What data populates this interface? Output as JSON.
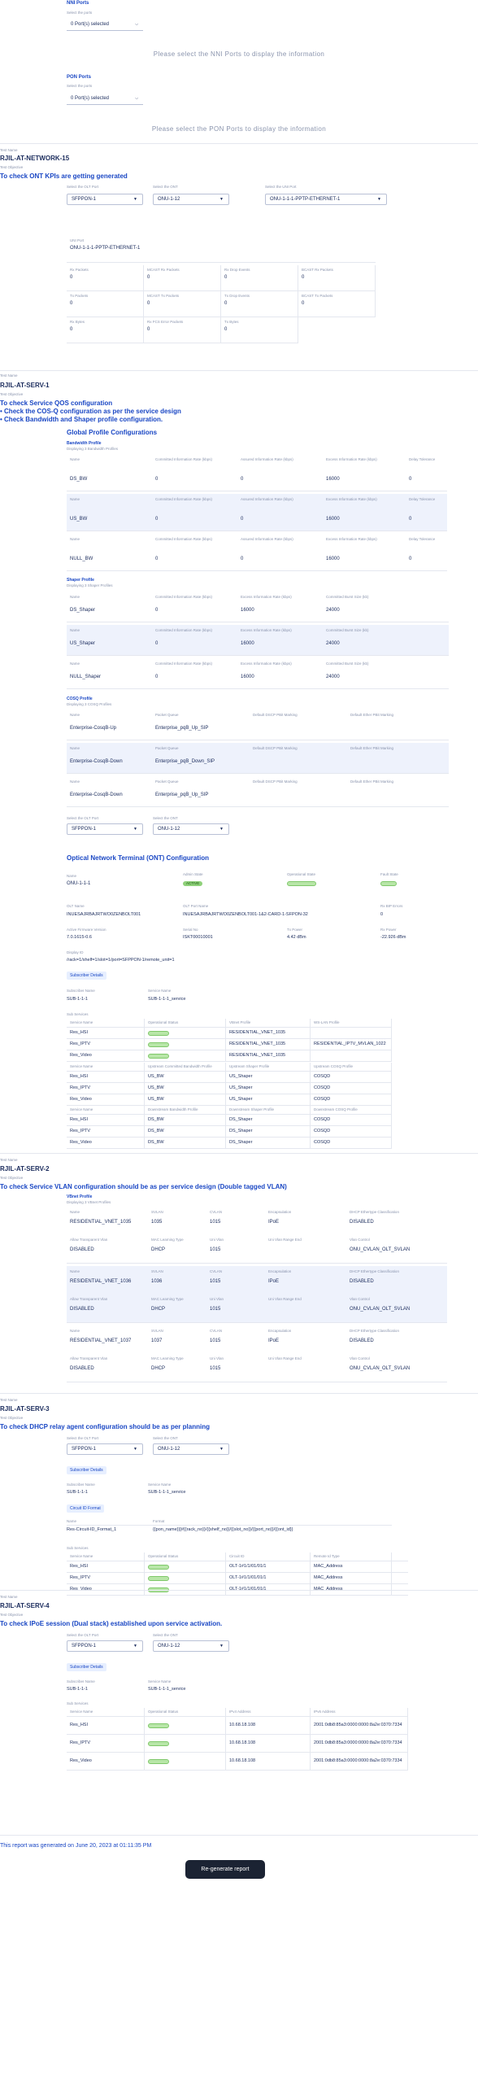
{
  "nni": {
    "title": "NNI Ports",
    "subtitle": "Select the ports",
    "selected": "0 Port(s) selected",
    "message": "Please select the NNI Ports to display the information"
  },
  "pon": {
    "title": "PON Ports",
    "subtitle": "Select the ports",
    "selected": "0 Port(s) selected",
    "message": "Please select the PON Ports to display the information"
  },
  "labels": {
    "test_name": "Test Name",
    "test_objective": "Test Objective",
    "select_olt_port": "Select the OLT Port",
    "select_onu": "Select the ONT",
    "select_uni": "Select the UNI Port",
    "subscriber_details": "Subscriber Details",
    "subscriber_name": "Subscriber Name",
    "service_name": "Service Name",
    "sub_services": "Sub Services",
    "circuit_id_format": "Circuit ID Format",
    "name": "Name",
    "format": "Format"
  },
  "net15": {
    "test_name": "RJIL-AT-NETWORK-15",
    "objective": "To check ONT KPIs are getting generated",
    "olt_port": "SFPPON-1",
    "onu": "ONU-1-12",
    "uni": "ONU-1-1-1-PPTP-ETHERNET-1",
    "uni_label": "UNI Port",
    "uni_value": "ONU-1-1-1-PPTP-ETHERNET-1",
    "kpis": [
      {
        "l": "Rx Packets",
        "v": "0"
      },
      {
        "l": "MCAST Rx Packets",
        "v": "0"
      },
      {
        "l": "Rx Drop Events",
        "v": "0"
      },
      {
        "l": "BCAST Rx Packets",
        "v": "0"
      },
      {
        "l": "Tx Packets",
        "v": "0"
      },
      {
        "l": "MCAST Tx Packets",
        "v": "0"
      },
      {
        "l": "Tx Drop Events",
        "v": "0"
      },
      {
        "l": "BCAST Tx Packets",
        "v": "0"
      },
      {
        "l": "Rx Bytes",
        "v": "0"
      },
      {
        "l": "Rx FCS Error Packets",
        "v": "0"
      },
      {
        "l": "Tx Bytes",
        "v": "0"
      }
    ]
  },
  "serv1": {
    "test_name": "RJIL-AT-SERV-1",
    "objectives": [
      "To check Service QOS configuration",
      "Check the COS-Q configuration as per the service design",
      "Check Bandwidth and Shaper profile configuration."
    ],
    "gpc": "Global Profile Configurations",
    "bw_title": "Bandwidth Profile",
    "bw_sub": "Displaying 3 Bandwidth Profiles",
    "bw_headers": [
      "Name",
      "Committed Information Rate (kbps)",
      "Assured Information Rate (kbps)",
      "Excess Information Rate (kbps)",
      "Delay Tolerance"
    ],
    "bw_rows": [
      [
        "DS_BW",
        "0",
        "0",
        "16000",
        "0"
      ],
      [
        "US_BW",
        "0",
        "0",
        "16000",
        "0"
      ],
      [
        "NULL_BW",
        "0",
        "0",
        "16000",
        "0"
      ]
    ],
    "sh_title": "Shaper Profile",
    "sh_sub": "Displaying 3 Shaper Profiles",
    "sh_headers": [
      "Name",
      "Committed Information Rate (kbps)",
      "Excess Information Rate (kbps)",
      "Committed Burst Size (kb)"
    ],
    "sh_rows": [
      [
        "DS_Shaper",
        "0",
        "16000",
        "24000"
      ],
      [
        "US_Shaper",
        "0",
        "16000",
        "24000"
      ],
      [
        "NULL_Shaper",
        "0",
        "16000",
        "24000"
      ]
    ],
    "cq_title": "COSQ Profile",
    "cq_sub": "Displaying 3 COSQ Profiles",
    "cq_headers": [
      "Name",
      "Packet Queue",
      "Default DSCP PBit Marking",
      "Default Ether PBit Marking"
    ],
    "cq_rows": [
      [
        "Enterprise-CosqB-Up",
        "Enterprise_pqB_Up_SIP",
        "",
        ""
      ],
      [
        "Enterprise-CosqB-Down",
        "Enterprise_pqB_Down_SIP",
        "",
        ""
      ],
      [
        "Enterprise-CosqB-Down",
        "Enterprise_pqB_Up_SIP",
        "",
        ""
      ]
    ],
    "olt_port": "SFPPON-1",
    "onu": "ONU-1-12",
    "ont_title": "Optical Network Terminal (ONT) Configuration",
    "ont_name": "ONU-1-1-1",
    "admin_state_label": "Admin State",
    "admin_state": "ACTIVE",
    "op_state_label": "Operational State",
    "fault_state_label": "Fault State",
    "olt_name_label": "OLT Name",
    "olt_name": "INUESAJRBAJRTWO0ZENBOLT001",
    "olt_port_name_label": "OLT Port Name",
    "olt_port_name": "INUESAJRBAJRTWO0ZENBOLT001-1&2-CARD-1-SFPON-32",
    "pon_errors_label": "Rx BIP Errors",
    "pon_errors": "0",
    "active_fw_label": "Active Firmware Version",
    "active_fw": "7.0.1615-0.6",
    "serial_label": "Serial No",
    "serial": "ISKT00010001",
    "tx_power_label": "Tx Power",
    "tx_power": "4.42 dBm",
    "rx_power_label": "Rx Power",
    "rx_power": "-22.926 dBm",
    "display_id_label": "Display ID",
    "display_id": "/rack=1/shelf=1/slot=1/port=SFPPON-1/remote_unit=1",
    "subscriber": "SUB-1-1-1",
    "service": "SUB-1-1-1_service",
    "ss_headers": [
      "Service Name",
      "Operational Status",
      "VBnet Profile",
      "WS-LAN Profile"
    ],
    "ss_rows": [
      [
        "Res_HSI",
        "",
        "RESIDENTIAL_VNET_1035",
        ""
      ],
      [
        "Res_IPTV",
        "",
        "RESIDENTIAL_VNET_1035",
        "RESIDENTIAL_IPTV_MVLAN_1022"
      ],
      [
        "Res_Video",
        "",
        "RESIDENTIAL_VNET_1035",
        ""
      ]
    ],
    "up_headers": [
      "Service Name",
      "Upstream Committed Bandwidth Profile",
      "Upstream Shaper Profile",
      "Upstream COSQ Profile"
    ],
    "up_rows": [
      [
        "Res_HSI",
        "US_BW",
        "US_Shaper",
        "COSQD"
      ],
      [
        "Res_IPTV",
        "US_BW",
        "US_Shaper",
        "COSQD"
      ],
      [
        "Res_Video",
        "US_BW",
        "US_Shaper",
        "COSQD"
      ]
    ],
    "dn_headers": [
      "Service Name",
      "Downstream Bandwidth Profile",
      "Downstream Shaper Profile",
      "Downstream COSQ Profile"
    ],
    "dn_rows": [
      [
        "Res_HSI",
        "DS_BW",
        "DS_Shaper",
        "COSQD"
      ],
      [
        "Res_IPTV",
        "DS_BW",
        "DS_Shaper",
        "COSQD"
      ],
      [
        "Res_Video",
        "DS_BW",
        "DS_Shaper",
        "COSQD"
      ]
    ]
  },
  "serv2": {
    "test_name": "RJIL-AT-SERV-2",
    "objective": "To check Service VLAN configuration should be as per service design (Double tagged VLAN)",
    "vp_title": "VBnet Profile",
    "vp_sub": "Displaying 3 VBnet Profiles",
    "h1": [
      "Name",
      "SVLAN",
      "CVLAN",
      "Encapsulation",
      "DHCP Ethertype Classification"
    ],
    "h2": [
      "Allow Transparent Vlan",
      "MAC Learning Type",
      "Uni Vlan",
      "Uni Vlan Range End",
      "Vlan Control"
    ],
    "rows": [
      {
        "a": [
          "RESIDENTIAL_VNET_1035",
          "1035",
          "1015",
          "IPoE",
          "DISABLED"
        ],
        "b": [
          "DISABLED",
          "DHCP",
          "1015",
          "",
          "ONU_CVLAN_OLT_SVLAN"
        ]
      },
      {
        "a": [
          "RESIDENTIAL_VNET_1036",
          "1036",
          "1015",
          "IPoE",
          "DISABLED"
        ],
        "b": [
          "DISABLED",
          "DHCP",
          "1015",
          "",
          "ONU_CVLAN_OLT_SVLAN"
        ]
      },
      {
        "a": [
          "RESIDENTIAL_VNET_1037",
          "1037",
          "1015",
          "IPoE",
          "DISABLED"
        ],
        "b": [
          "DISABLED",
          "DHCP",
          "1015",
          "",
          "ONU_CVLAN_OLT_SVLAN"
        ]
      }
    ]
  },
  "serv3": {
    "test_name": "RJIL-AT-SERV-3",
    "objective": "To check DHCP relay agent configuration should be as per planning",
    "olt_port": "SFPPON-1",
    "onu": "ONU-1-12",
    "subscriber": "SUB-1-1-1",
    "service": "SUB-1-1-1_service",
    "cf_name": "Res-Circuit-ID_Format_1",
    "cf_format": "{{pon_name}}[#{{rack_no}}/{{shelf_no}}/{{slot_no}}/{{port_no}}/{{ont_id}}",
    "ss_headers": [
      "Service Name",
      "Operational Status",
      "Circuit ID",
      "Remote Id Type"
    ],
    "ss_rows": [
      [
        "Res_HSI",
        "",
        "OLT-1#1/1/01/01/1",
        "MAC_Address"
      ],
      [
        "Res_IPTV",
        "",
        "OLT-1#1/1/01/01/1",
        "MAC_Address"
      ],
      [
        "Res_Video",
        "",
        "OLT-1#1/1/01/01/1",
        "MAC_Address"
      ]
    ]
  },
  "serv4": {
    "test_name": "RJIL-AT-SERV-4",
    "objective": "To check IPoE session (Dual stack) established upon service activation.",
    "olt_port": "SFPPON-1",
    "onu": "ONU-1-12",
    "subscriber": "SUB-1-1-1",
    "service": "SUB-1-1-1_service",
    "ss_headers": [
      "Service Name",
      "Operational Status",
      "IPv4 Address",
      "IPv6 Address"
    ],
    "ss_rows": [
      [
        "Res_HSI",
        "",
        "10.68.18.108",
        "2001:0db8:85a3:0000:0000:8a2e:0370:7334"
      ],
      [
        "Res_IPTV",
        "",
        "10.68.18.108",
        "2001:0db8:85a3:0000:0000:8a2e:0370:7334"
      ],
      [
        "Res_Video",
        "",
        "10.68.18.108",
        "2001:0db8:85a3:0000:0000:8a2e:0370:7334"
      ]
    ]
  },
  "footer": {
    "generated": "This report was generated on June 20, 2023 at 01:11:35 PM",
    "regen_button": "Re-generate report"
  }
}
